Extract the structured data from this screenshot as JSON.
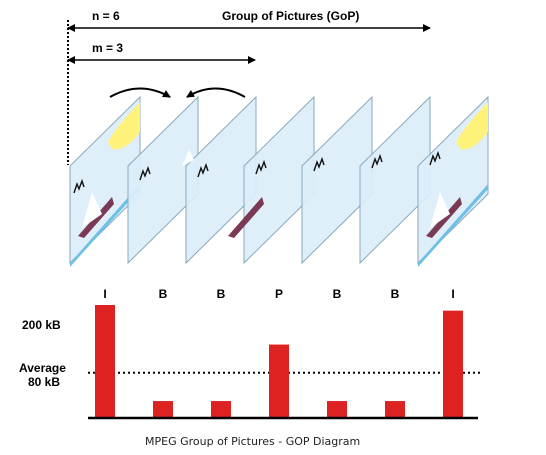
{
  "header": {
    "n_label": "n = 6",
    "gop_label": "Group of Pictures (GoP)",
    "m_label": "m = 3"
  },
  "frames": [
    "I",
    "B",
    "B",
    "P",
    "B",
    "B",
    "I"
  ],
  "chart_data": {
    "type": "bar",
    "categories": [
      "I",
      "B",
      "B",
      "P",
      "B",
      "B",
      "I"
    ],
    "values": [
      200,
      30,
      30,
      130,
      30,
      30,
      190
    ],
    "ylabel_ticks": [
      "200 kB"
    ],
    "average_label_line1": "Average",
    "average_label_line2": "80 kB",
    "average_value": 80,
    "ylim": [
      0,
      200
    ],
    "bar_color": "#dd2222"
  },
  "caption": "MPEG Group of Pictures - GOP Diagram",
  "colors": {
    "frame_fill": "#dbeefa",
    "frame_stroke": "#8aa8bd",
    "sun": "#fff27a",
    "boat": "#7a3a55",
    "water": "#6fc0e6"
  }
}
